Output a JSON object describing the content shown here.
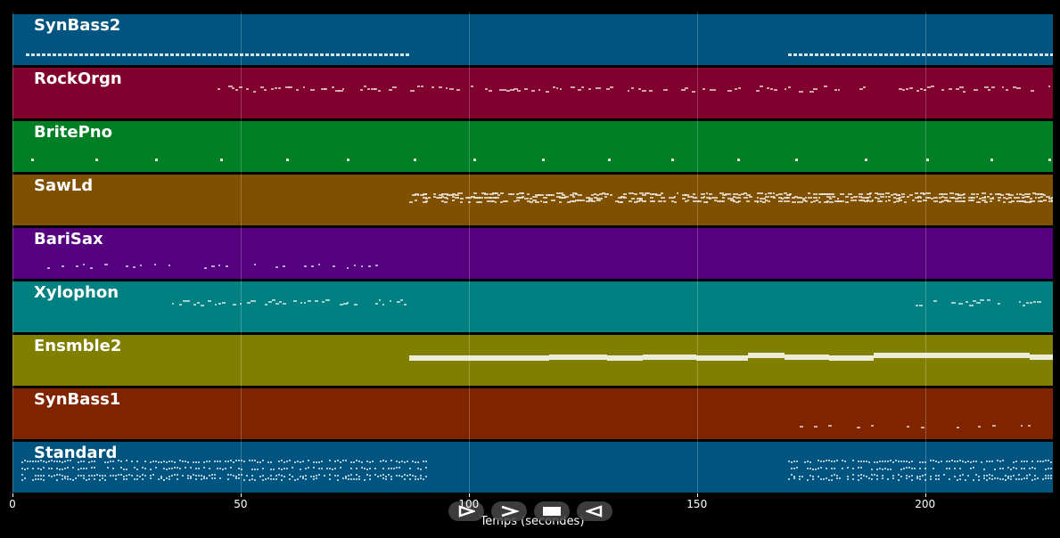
{
  "chart_data": {
    "type": "piano-roll",
    "xlabel": "Temps (secondes)",
    "xlim": [
      0,
      228
    ],
    "xticks": [
      "0",
      "50",
      "100",
      "150",
      "200"
    ],
    "xtick_values": [
      0,
      50,
      100,
      150,
      200
    ],
    "tracks": [
      {
        "name": "SynBass2",
        "color": "#005580",
        "segments": [
          [
            3,
            87
          ],
          [
            170,
            228
          ]
        ],
        "style": "dash-line"
      },
      {
        "name": "RockOrgn",
        "color": "#80002e",
        "segments": [
          [
            45,
            228
          ]
        ],
        "style": "sparse-dense"
      },
      {
        "name": "BritePno",
        "color": "#007f24",
        "segments": [
          [
            3,
            228
          ]
        ],
        "style": "isolated"
      },
      {
        "name": "SawLd",
        "color": "#7f5000",
        "segments": [
          [
            87,
            228
          ]
        ],
        "style": "dense"
      },
      {
        "name": "BariSax",
        "color": "#55007f",
        "segments": [
          [
            6,
            85
          ]
        ],
        "style": "sparse"
      },
      {
        "name": "Xylophon",
        "color": "#008080",
        "segments": [
          [
            31,
            86
          ],
          [
            198,
            225
          ]
        ],
        "style": "sparse-dense"
      },
      {
        "name": "Ensmble2",
        "color": "#807f00",
        "segments": [
          [
            87,
            228
          ]
        ],
        "style": "thick"
      },
      {
        "name": "SynBass1",
        "color": "#802400",
        "segments": [
          [
            171,
            228
          ]
        ],
        "style": "sparse"
      },
      {
        "name": "Standard",
        "color": "#005580",
        "segments": [
          [
            2,
            91
          ],
          [
            170,
            228
          ]
        ],
        "style": "drums"
      }
    ]
  },
  "controls": {
    "play_icon": "play-icon",
    "forward_icon": "fast-forward-icon",
    "stop_icon": "stop-icon",
    "back_icon": "rewind-icon"
  }
}
